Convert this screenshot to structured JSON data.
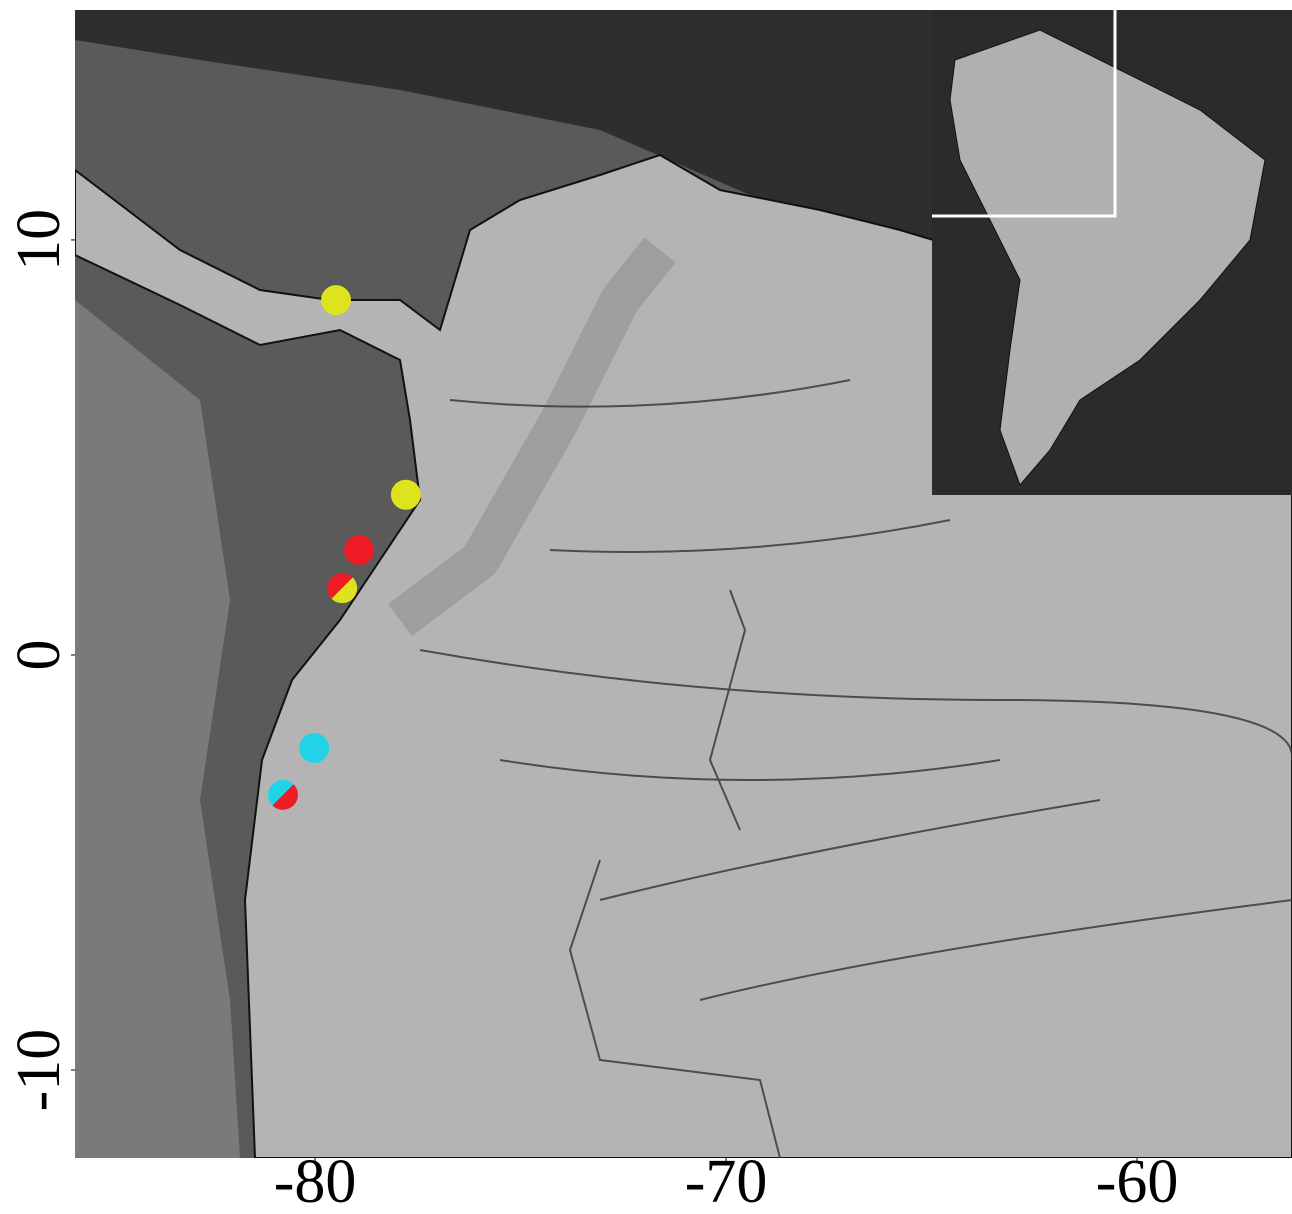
{
  "chart_data": {
    "type": "map",
    "xlim": [
      -85.84,
      -56.23
    ],
    "ylim": [
      -12.12,
      15.54
    ],
    "xticks": [
      -80,
      -70,
      -60
    ],
    "yticks": [
      10,
      0,
      -10
    ],
    "points": [
      {
        "lon": -79.49,
        "lat": 8.55,
        "colors": [
          "#dde31c"
        ]
      },
      {
        "lon": -77.79,
        "lat": 3.86,
        "colors": [
          "#dde31c"
        ]
      },
      {
        "lon": -78.93,
        "lat": 2.53,
        "colors": [
          "#ee1c25"
        ]
      },
      {
        "lon": -79.34,
        "lat": 1.61,
        "colors": [
          "#ee1c25",
          "#dde31c"
        ]
      },
      {
        "lon": -80.02,
        "lat": -2.24,
        "colors": [
          "#22d3e8"
        ]
      },
      {
        "lon": -80.78,
        "lat": -3.37,
        "colors": [
          "#22d3e8",
          "#ee1c25"
        ]
      }
    ]
  }
}
